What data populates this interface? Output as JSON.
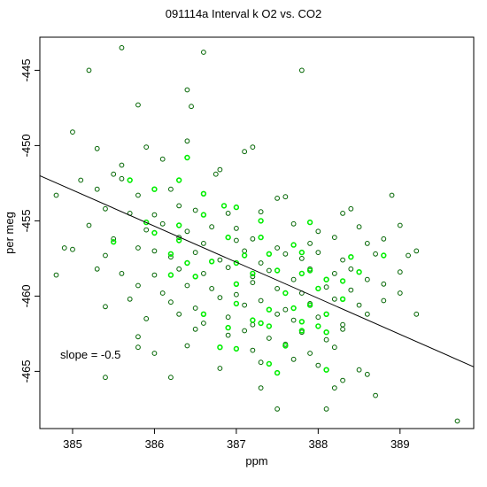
{
  "chart_data": {
    "type": "scatter",
    "title": "091114a   Interval k O2 vs. CO2",
    "xlabel": "ppm",
    "ylabel": "per meg",
    "xlim": [
      384.6,
      389.9
    ],
    "ylim": [
      -468.8,
      -442.8
    ],
    "x_ticks": [
      385,
      386,
      387,
      388,
      389
    ],
    "y_ticks": [
      -445,
      -450,
      -455,
      -460,
      -465
    ],
    "annotation": "slope =  -0.5",
    "grid": false,
    "colors": {
      "dark_points": "#006400",
      "bright_points": "#00ee00",
      "fit_line": "#000000",
      "axes": "#000000"
    },
    "fit_line": {
      "slope": -0.5,
      "points": [
        [
          384.6,
          -452.0
        ],
        [
          389.9,
          -464.7
        ]
      ]
    },
    "series": [
      {
        "color": "#006400",
        "points": [
          [
            385.6,
            -443.5
          ],
          [
            386.6,
            -443.8
          ],
          [
            385.2,
            -445.0
          ],
          [
            387.8,
            -445.0
          ],
          [
            386.4,
            -446.3
          ],
          [
            386.45,
            -447.4
          ],
          [
            385.8,
            -447.3
          ],
          [
            385.0,
            -449.1
          ],
          [
            386.4,
            -449.7
          ],
          [
            385.9,
            -450.1
          ],
          [
            385.3,
            -450.2
          ],
          [
            387.2,
            -450.1
          ],
          [
            387.1,
            -450.4
          ],
          [
            385.6,
            -451.3
          ],
          [
            386.1,
            -450.9
          ],
          [
            386.75,
            -451.9
          ],
          [
            386.8,
            -451.6
          ],
          [
            385.5,
            -451.9
          ],
          [
            384.8,
            -453.3
          ],
          [
            385.1,
            -452.3
          ],
          [
            385.6,
            -452.2
          ],
          [
            385.3,
            -452.9
          ],
          [
            385.8,
            -453.3
          ],
          [
            386.2,
            -452.9
          ],
          [
            386.6,
            -453.2
          ],
          [
            387.6,
            -453.4
          ],
          [
            387.5,
            -453.5
          ],
          [
            386.3,
            -454.0
          ],
          [
            385.4,
            -454.2
          ],
          [
            385.7,
            -454.5
          ],
          [
            386.0,
            -454.6
          ],
          [
            386.5,
            -454.3
          ],
          [
            386.9,
            -454.5
          ],
          [
            387.3,
            -454.4
          ],
          [
            388.3,
            -454.5
          ],
          [
            388.4,
            -454.2
          ],
          [
            388.9,
            -453.3
          ],
          [
            385.2,
            -455.3
          ],
          [
            385.9,
            -455.6
          ],
          [
            386.1,
            -455.2
          ],
          [
            386.4,
            -455.7
          ],
          [
            386.7,
            -455.4
          ],
          [
            387.0,
            -455.5
          ],
          [
            387.7,
            -455.2
          ],
          [
            388.0,
            -455.7
          ],
          [
            388.5,
            -455.4
          ],
          [
            389.0,
            -455.3
          ],
          [
            385.5,
            -456.2
          ],
          [
            385.8,
            -456.8
          ],
          [
            386.3,
            -456.1
          ],
          [
            386.6,
            -456.5
          ],
          [
            387.0,
            -456.3
          ],
          [
            387.2,
            -456.2
          ],
          [
            387.5,
            -456.8
          ],
          [
            387.9,
            -456.5
          ],
          [
            388.2,
            -456.1
          ],
          [
            388.6,
            -456.5
          ],
          [
            388.8,
            -456.2
          ],
          [
            384.9,
            -456.8
          ],
          [
            385.0,
            -456.9
          ],
          [
            385.4,
            -457.3
          ],
          [
            386.0,
            -457.0
          ],
          [
            386.2,
            -457.4
          ],
          [
            386.5,
            -457.1
          ],
          [
            386.8,
            -457.6
          ],
          [
            387.1,
            -457.0
          ],
          [
            387.3,
            -457.8
          ],
          [
            387.6,
            -457.2
          ],
          [
            387.8,
            -457.5
          ],
          [
            388.0,
            -457.1
          ],
          [
            388.3,
            -457.6
          ],
          [
            388.7,
            -457.2
          ],
          [
            389.1,
            -457.3
          ],
          [
            389.2,
            -457.0
          ],
          [
            385.3,
            -458.2
          ],
          [
            385.6,
            -458.5
          ],
          [
            386.0,
            -458.6
          ],
          [
            386.3,
            -458.2
          ],
          [
            386.6,
            -458.5
          ],
          [
            386.9,
            -458.1
          ],
          [
            387.2,
            -458.7
          ],
          [
            387.4,
            -458.3
          ],
          [
            387.7,
            -458.9
          ],
          [
            387.9,
            -458.2
          ],
          [
            388.2,
            -458.5
          ],
          [
            388.4,
            -458.2
          ],
          [
            388.6,
            -458.9
          ],
          [
            389.0,
            -458.4
          ],
          [
            384.8,
            -458.6
          ],
          [
            385.8,
            -459.3
          ],
          [
            386.1,
            -459.8
          ],
          [
            386.4,
            -459.3
          ],
          [
            386.7,
            -459.5
          ],
          [
            387.0,
            -459.9
          ],
          [
            387.2,
            -459.1
          ],
          [
            387.5,
            -459.5
          ],
          [
            387.8,
            -459.8
          ],
          [
            388.1,
            -459.4
          ],
          [
            388.4,
            -459.6
          ],
          [
            388.8,
            -459.2
          ],
          [
            389.0,
            -459.8
          ],
          [
            385.4,
            -460.7
          ],
          [
            385.7,
            -460.2
          ],
          [
            386.2,
            -460.4
          ],
          [
            386.5,
            -460.8
          ],
          [
            386.8,
            -460.1
          ],
          [
            387.1,
            -460.6
          ],
          [
            387.3,
            -460.3
          ],
          [
            387.6,
            -460.9
          ],
          [
            387.9,
            -460.5
          ],
          [
            388.2,
            -460.2
          ],
          [
            388.5,
            -460.6
          ],
          [
            388.8,
            -460.3
          ],
          [
            389.2,
            -461.2
          ],
          [
            385.9,
            -461.5
          ],
          [
            386.3,
            -461.2
          ],
          [
            386.6,
            -461.8
          ],
          [
            386.9,
            -461.4
          ],
          [
            387.2,
            -461.9
          ],
          [
            387.5,
            -461.2
          ],
          [
            387.7,
            -461.6
          ],
          [
            388.0,
            -461.4
          ],
          [
            388.3,
            -461.9
          ],
          [
            388.6,
            -461.2
          ],
          [
            385.8,
            -462.7
          ],
          [
            386.5,
            -462.2
          ],
          [
            386.9,
            -462.6
          ],
          [
            387.1,
            -462.3
          ],
          [
            387.4,
            -462.8
          ],
          [
            387.8,
            -462.4
          ],
          [
            388.1,
            -462.9
          ],
          [
            388.3,
            -462.2
          ],
          [
            385.8,
            -463.4
          ],
          [
            386.0,
            -463.8
          ],
          [
            386.4,
            -463.3
          ],
          [
            387.2,
            -463.6
          ],
          [
            387.6,
            -463.2
          ],
          [
            387.9,
            -463.8
          ],
          [
            388.2,
            -463.4
          ],
          [
            386.8,
            -464.8
          ],
          [
            387.3,
            -464.4
          ],
          [
            387.7,
            -464.2
          ],
          [
            388.0,
            -464.6
          ],
          [
            388.5,
            -464.9
          ],
          [
            385.4,
            -465.4
          ],
          [
            386.2,
            -465.4
          ],
          [
            388.3,
            -465.6
          ],
          [
            388.6,
            -465.2
          ],
          [
            387.3,
            -466.1
          ],
          [
            388.2,
            -466.1
          ],
          [
            388.7,
            -466.6
          ],
          [
            387.5,
            -467.5
          ],
          [
            389.7,
            -468.3
          ],
          [
            388.1,
            -467.5
          ]
        ]
      },
      {
        "color": "#00ee00",
        "points": [
          [
            386.4,
            -450.8
          ],
          [
            386.3,
            -452.3
          ],
          [
            385.7,
            -452.3
          ],
          [
            386.0,
            -452.9
          ],
          [
            386.6,
            -453.2
          ],
          [
            386.85,
            -454.0
          ],
          [
            387.0,
            -454.1
          ],
          [
            385.9,
            -455.1
          ],
          [
            386.3,
            -455.3
          ],
          [
            386.6,
            -454.6
          ],
          [
            387.3,
            -455.0
          ],
          [
            387.9,
            -455.1
          ],
          [
            385.5,
            -456.4
          ],
          [
            386.0,
            -455.8
          ],
          [
            386.3,
            -456.3
          ],
          [
            386.9,
            -456.1
          ],
          [
            387.3,
            -456.1
          ],
          [
            387.4,
            -457.2
          ],
          [
            387.7,
            -456.6
          ],
          [
            387.8,
            -457.1
          ],
          [
            388.4,
            -457.4
          ],
          [
            388.8,
            -457.3
          ],
          [
            386.4,
            -457.8
          ],
          [
            386.2,
            -457.2
          ],
          [
            387.0,
            -457.8
          ],
          [
            387.5,
            -458.3
          ],
          [
            387.2,
            -458.5
          ],
          [
            387.9,
            -458.3
          ],
          [
            388.1,
            -458.9
          ],
          [
            388.3,
            -459.0
          ],
          [
            386.5,
            -458.7
          ],
          [
            387.0,
            -459.2
          ],
          [
            387.6,
            -459.8
          ],
          [
            388.0,
            -459.5
          ],
          [
            388.3,
            -460.2
          ],
          [
            387.0,
            -460.5
          ],
          [
            387.4,
            -460.9
          ],
          [
            387.7,
            -460.8
          ],
          [
            388.1,
            -461.2
          ],
          [
            387.2,
            -461.6
          ],
          [
            387.8,
            -461.7
          ],
          [
            388.0,
            -462.0
          ],
          [
            386.9,
            -462.1
          ],
          [
            386.6,
            -461.2
          ],
          [
            388.1,
            -462.4
          ],
          [
            387.8,
            -462.3
          ],
          [
            387.4,
            -462.0
          ],
          [
            386.8,
            -463.4
          ],
          [
            387.0,
            -463.5
          ],
          [
            387.6,
            -463.3
          ],
          [
            387.5,
            -465.1
          ],
          [
            387.4,
            -464.5
          ],
          [
            388.1,
            -464.9
          ],
          [
            387.9,
            -460.6
          ],
          [
            387.3,
            -461.8
          ],
          [
            386.7,
            -457.7
          ],
          [
            387.1,
            -457.3
          ],
          [
            388.5,
            -458.4
          ],
          [
            386.2,
            -458.6
          ],
          [
            387.8,
            -458.5
          ]
        ]
      }
    ]
  }
}
